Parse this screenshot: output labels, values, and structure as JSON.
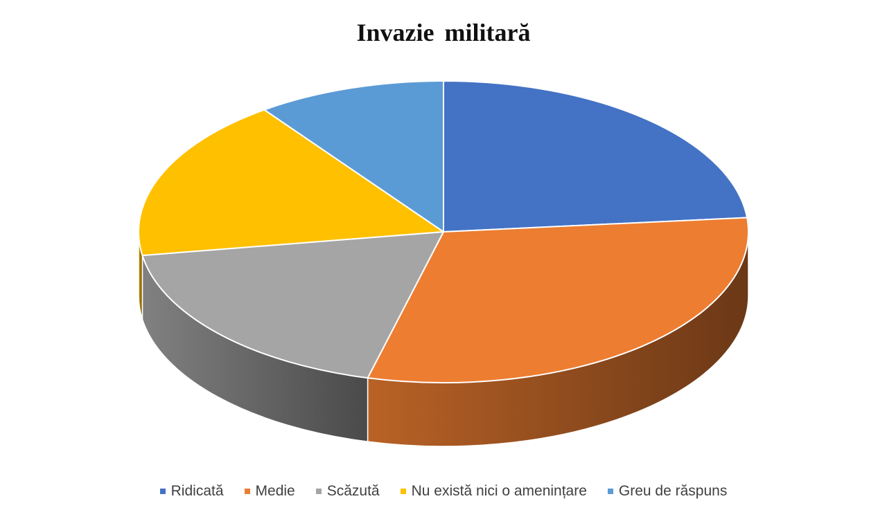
{
  "chart_data": {
    "type": "pie",
    "title": "Invazie militară",
    "categories": [
      "Ridicată",
      "Medie",
      "Scăzută",
      "Nu există nici o amenințare",
      "Greu de răspuns"
    ],
    "values": [
      23.5,
      30.5,
      18.5,
      17.5,
      10
    ],
    "colors": [
      "#4472C4",
      "#ED7D31",
      "#A5A5A5",
      "#FFC000",
      "#5B9BD5"
    ],
    "legend_position": "bottom",
    "style": "3d-pie"
  }
}
